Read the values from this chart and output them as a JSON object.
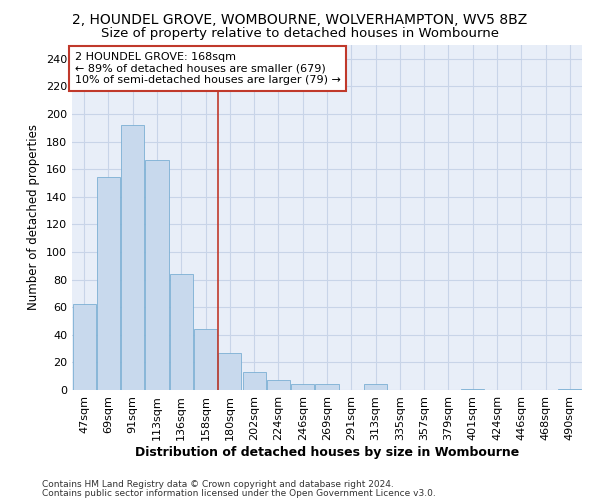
{
  "title": "2, HOUNDEL GROVE, WOMBOURNE, WOLVERHAMPTON, WV5 8BZ",
  "subtitle": "Size of property relative to detached houses in Wombourne",
  "xlabel": "Distribution of detached houses by size in Wombourne",
  "ylabel": "Number of detached properties",
  "categories": [
    "47sqm",
    "69sqm",
    "91sqm",
    "113sqm",
    "136sqm",
    "158sqm",
    "180sqm",
    "202sqm",
    "224sqm",
    "246sqm",
    "269sqm",
    "291sqm",
    "313sqm",
    "335sqm",
    "357sqm",
    "379sqm",
    "401sqm",
    "424sqm",
    "446sqm",
    "468sqm",
    "490sqm"
  ],
  "values": [
    62,
    154,
    192,
    167,
    84,
    44,
    27,
    13,
    7,
    4,
    4,
    0,
    4,
    0,
    0,
    0,
    1,
    0,
    0,
    0,
    1
  ],
  "bar_color": "#c8d9ed",
  "bar_edge_color": "#7bafd4",
  "vline_x": 5.5,
  "vline_color": "#c0392b",
  "annotation_line1": "2 HOUNDEL GROVE: 168sqm",
  "annotation_line2": "← 89% of detached houses are smaller (679)",
  "annotation_line3": "10% of semi-detached houses are larger (79) →",
  "annotation_box_color": "#ffffff",
  "annotation_box_edge": "#c0392b",
  "ylim": [
    0,
    250
  ],
  "yticks": [
    0,
    20,
    40,
    60,
    80,
    100,
    120,
    140,
    160,
    180,
    200,
    220,
    240
  ],
  "footer1": "Contains HM Land Registry data © Crown copyright and database right 2024.",
  "footer2": "Contains public sector information licensed under the Open Government Licence v3.0.",
  "background_color": "#ffffff",
  "plot_bg_color": "#e8eef8",
  "grid_color": "#c8d4e8",
  "title_fontsize": 10,
  "subtitle_fontsize": 9.5,
  "ylabel_fontsize": 8.5,
  "xlabel_fontsize": 9,
  "tick_fontsize": 8,
  "annotation_fontsize": 8,
  "footer_fontsize": 6.5
}
